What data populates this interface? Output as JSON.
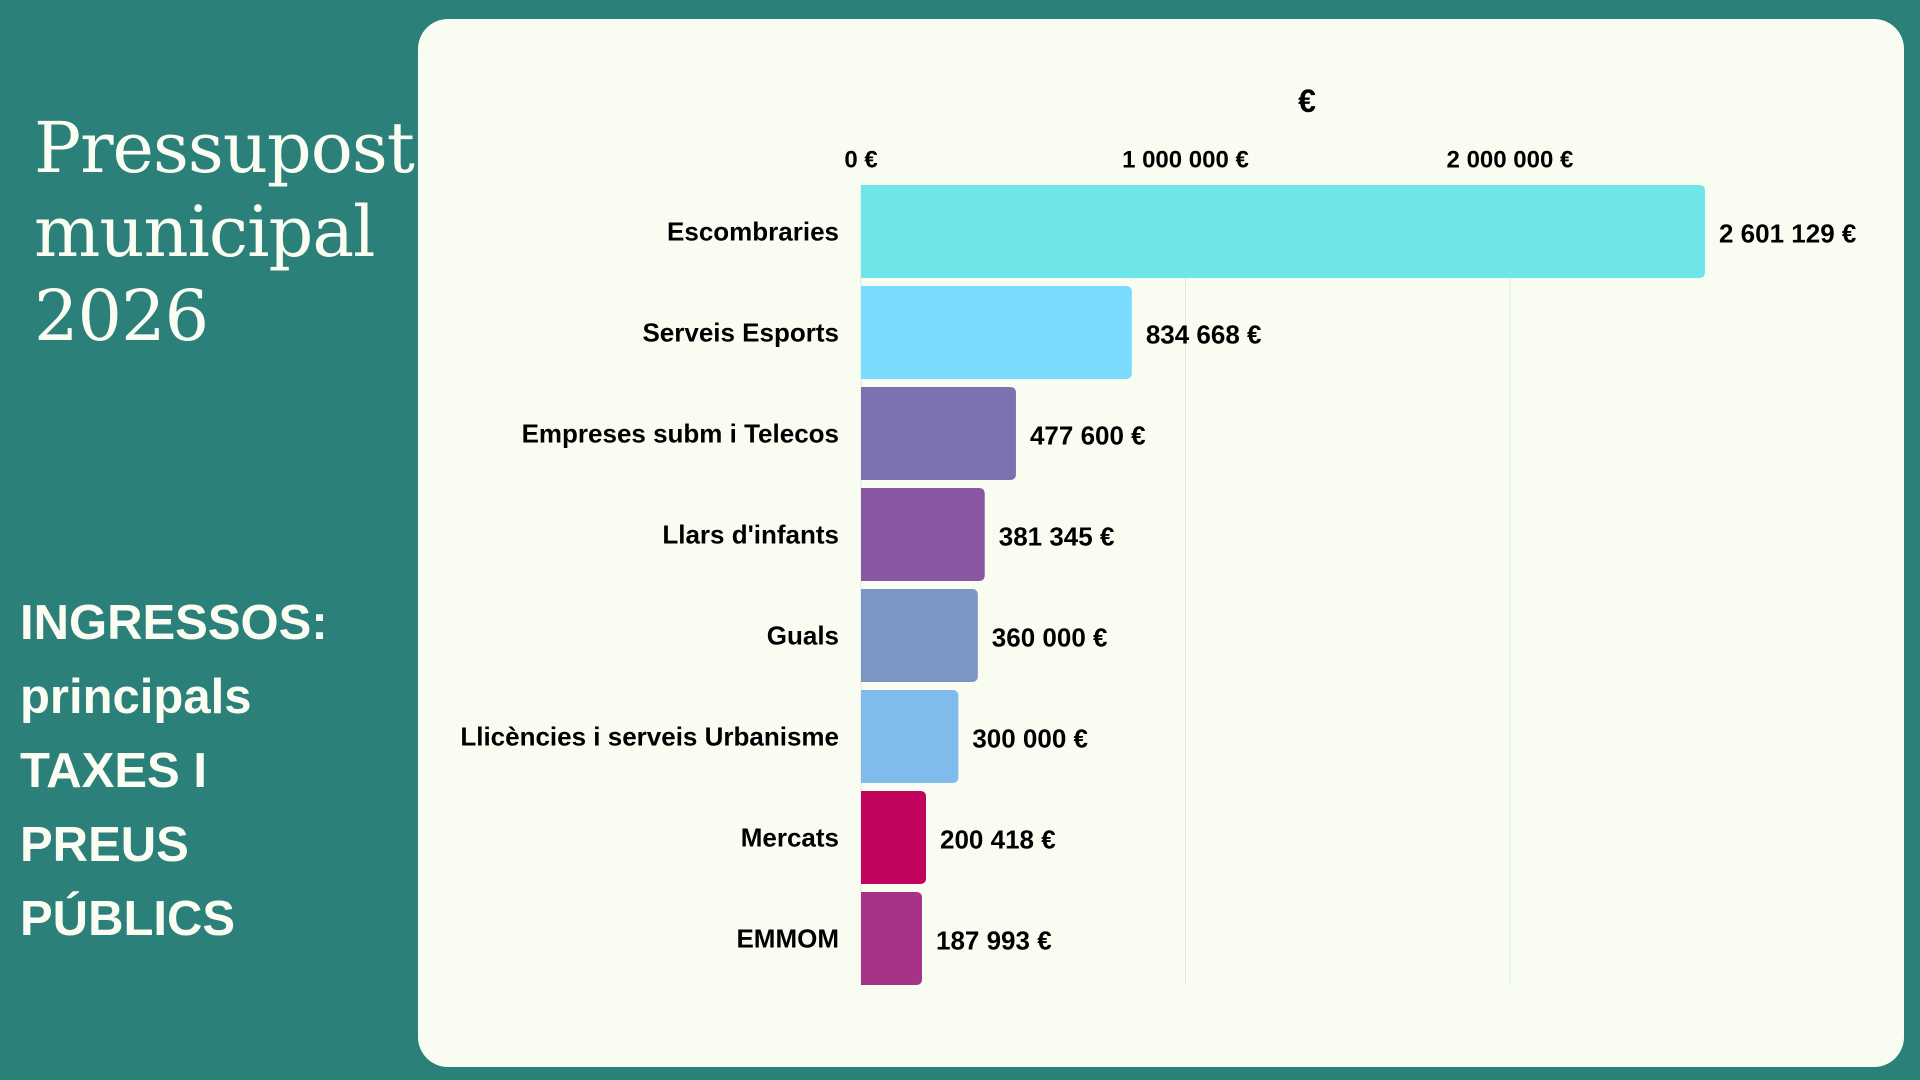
{
  "left_panel": {
    "title_lines": [
      "Pressupost",
      "municipal",
      "2026"
    ],
    "subtitle_lines": [
      "INGRESSOS:",
      "principals",
      "TAXES I",
      "PREUS",
      "PÚBLICS"
    ]
  },
  "colors": {
    "background": "#2b8179",
    "panel": "#f8fcf1",
    "bars": [
      "#6de5e9",
      "#79dcfd",
      "#7b73af",
      "#8b57a2",
      "#7d95c4",
      "#80bceb",
      "#c0035c",
      "#a53489"
    ]
  },
  "chart_data": {
    "type": "bar",
    "orientation": "horizontal",
    "axis_title": "€",
    "xlim": [
      0,
      2601129
    ],
    "ticks": [
      0,
      1000000,
      2000000
    ],
    "tick_labels": [
      "0 €",
      "1 000 000 €",
      "2 000 000 €"
    ],
    "grid": true,
    "categories": [
      "Escombraries",
      "Serveis Esports",
      "Empreses subm i Telecos",
      "Llars d'infants",
      "Guals",
      "Llicències i serveis Urbanisme",
      "Mercats",
      "EMMOM"
    ],
    "values": [
      2601129,
      834668,
      477600,
      381345,
      360000,
      300000,
      200418,
      187993
    ],
    "value_labels": [
      "2 601 129 €",
      "834 668 €",
      "477 600 €",
      "381 345 €",
      "360 000 €",
      "300 000 €",
      "200 418 €",
      "187 993 €"
    ]
  }
}
